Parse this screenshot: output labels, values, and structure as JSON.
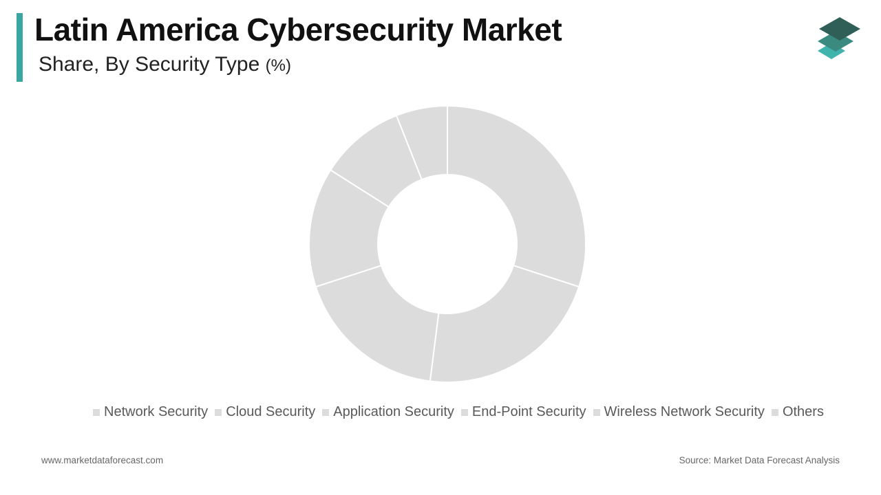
{
  "header": {
    "title": "Latin America Cybersecurity Market",
    "subtitle": "Share, By Security Type",
    "unit": "(%)"
  },
  "logo": {
    "icon": "stacked-layers-logo",
    "colors": [
      "#2f5f57",
      "#3b8a80",
      "#3fb3ac"
    ]
  },
  "colors": {
    "accent": "#3aa6a1",
    "slice": "#dcdcdc",
    "slice_border": "#ffffff",
    "legend_text": "#595959"
  },
  "chart_data": {
    "type": "pie",
    "variant": "donut",
    "categories": [
      "Network Security",
      "Cloud Security",
      "Application Security",
      "End-Point Security",
      "Wireless Network Security",
      "Others"
    ],
    "values": [
      30,
      22,
      18,
      14,
      10,
      6
    ],
    "legend_position": "bottom"
  },
  "footer": {
    "website": "www.marketdataforecast.com",
    "source": "Source: Market Data Forecast Analysis"
  }
}
